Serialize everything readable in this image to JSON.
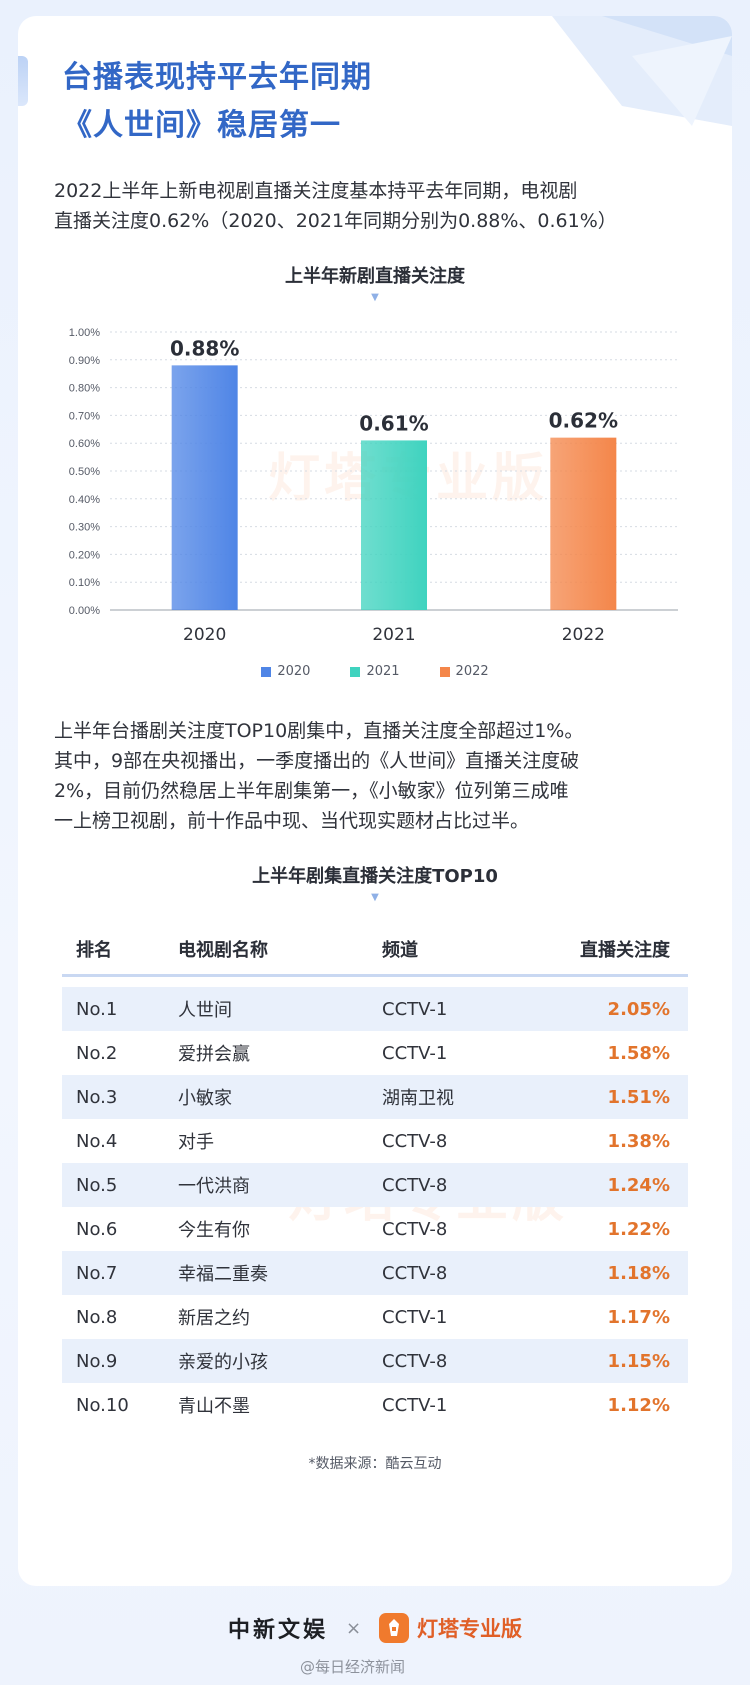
{
  "header": {
    "title_line1": "台播表现持平去年同期",
    "title_line2": "《人世间》稳居第一"
  },
  "intro": {
    "line1": "2022上半年上新电视剧直播关注度基本持平去年同期，电视剧",
    "line2": "直播关注度0.62%（2020、2021年同期分别为0.88%、0.61%）"
  },
  "chart_data": {
    "type": "bar",
    "title": "上半年新剧直播关注度",
    "categories": [
      "2020",
      "2021",
      "2022"
    ],
    "values": [
      0.88,
      0.61,
      0.62
    ],
    "value_labels": [
      "0.88%",
      "0.61%",
      "0.62%"
    ],
    "unit": "%",
    "ylim": [
      0,
      1.0
    ],
    "yticks": [
      "0.00%",
      "0.10%",
      "0.20%",
      "0.30%",
      "0.40%",
      "0.50%",
      "0.60%",
      "0.70%",
      "0.80%",
      "0.90%",
      "1.00%"
    ],
    "grid": true,
    "legend": [
      "2020",
      "2021",
      "2022"
    ],
    "legend_position": "bottom",
    "colors": [
      "#4f85e6",
      "#3fd3bf",
      "#f4864a"
    ]
  },
  "paragraph": {
    "line1": "上半年台播剧关注度TOP10剧集中，直播关注度全部超过1%。",
    "line2": "其中，9部在央视播出，一季度播出的《人世间》直播关注度破",
    "line3": "2%，目前仍然稳居上半年剧集第一，《小敏家》位列第三成唯",
    "line4": "一上榜卫视剧，前十作品中现、当代现实题材占比过半。"
  },
  "table": {
    "title": "上半年剧集直播关注度TOP10",
    "headers": [
      "排名",
      "电视剧名称",
      "频道",
      "直播关注度"
    ],
    "rows": [
      [
        "No.1",
        "人世间",
        "CCTV-1",
        "2.05%"
      ],
      [
        "No.2",
        "爱拼会赢",
        "CCTV-1",
        "1.58%"
      ],
      [
        "No.3",
        "小敏家",
        "湖南卫视",
        "1.51%"
      ],
      [
        "No.4",
        "对手",
        "CCTV-8",
        "1.38%"
      ],
      [
        "No.5",
        "一代洪商",
        "CCTV-8",
        "1.24%"
      ],
      [
        "No.6",
        "今生有你",
        "CCTV-8",
        "1.22%"
      ],
      [
        "No.7",
        "幸福二重奏",
        "CCTV-8",
        "1.18%"
      ],
      [
        "No.8",
        "新居之约",
        "CCTV-1",
        "1.17%"
      ],
      [
        "No.9",
        "亲爱的小孩",
        "CCTV-8",
        "1.15%"
      ],
      [
        "No.10",
        "青山不墨",
        "CCTV-1",
        "1.12%"
      ]
    ]
  },
  "source": "*数据来源：酷云互动",
  "watermark": "灯塔专业版",
  "footer": {
    "left_logo": "中新文娱",
    "separator": "×",
    "right_logo": "灯塔专业版",
    "bottom_watermark": "@每日经济新闻"
  }
}
